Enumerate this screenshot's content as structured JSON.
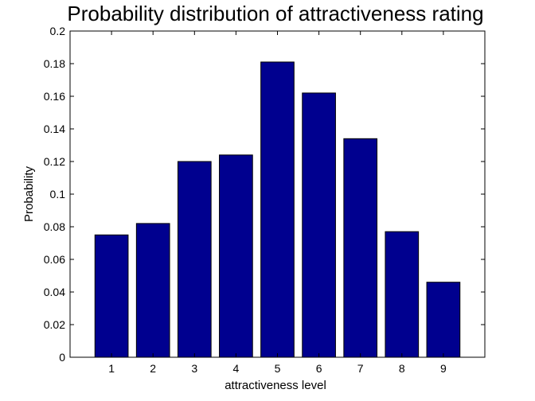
{
  "chart_data": {
    "type": "bar",
    "title": "Probability distribution of attractiveness rating",
    "xlabel": "attractiveness level",
    "ylabel": "Probability",
    "categories": [
      "1",
      "2",
      "3",
      "4",
      "5",
      "6",
      "7",
      "8",
      "9"
    ],
    "values": [
      0.075,
      0.082,
      0.12,
      0.124,
      0.181,
      0.162,
      0.134,
      0.077,
      0.046
    ],
    "ylim": [
      0,
      0.2
    ],
    "xlim": [
      0,
      10
    ],
    "yticks": [
      "0",
      "0.02",
      "0.04",
      "0.06",
      "0.08",
      "0.1",
      "0.12",
      "0.14",
      "0.16",
      "0.18",
      "0.2"
    ],
    "grid": false,
    "legend": "none",
    "bar_color": "#00008f"
  }
}
